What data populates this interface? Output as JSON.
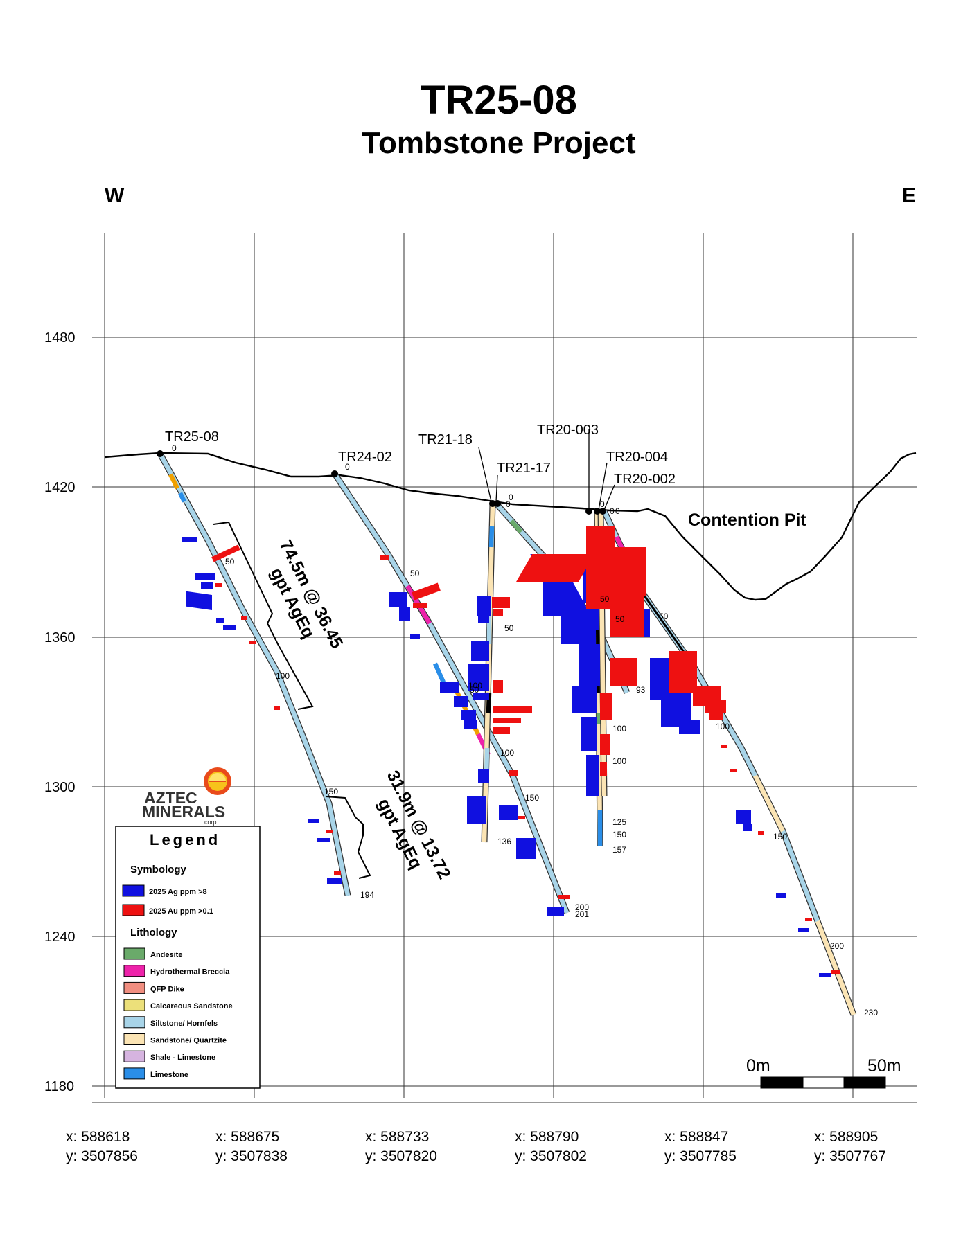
{
  "title": "TR25-08",
  "subtitle": "Tombstone Project",
  "directions": {
    "west": "W",
    "east": "E"
  },
  "elevation_ticks": [
    "1480",
    "1420",
    "1360",
    "1300",
    "1240",
    "1180"
  ],
  "coordinates": [
    {
      "x": "x: 588618",
      "y": "y: 3507856"
    },
    {
      "x": "x: 588675",
      "y": "y: 3507838"
    },
    {
      "x": "x: 588733",
      "y": "y: 3507820"
    },
    {
      "x": "x: 588790",
      "y": "y: 3507802"
    },
    {
      "x": "x: 588847",
      "y": "y: 3507785"
    },
    {
      "x": "x: 588905",
      "y": "y: 3507767"
    }
  ],
  "pit_label": "Contention Pit",
  "holes": [
    {
      "name": "TR25-08",
      "collar": "0",
      "marks": [
        "50",
        "100",
        "150"
      ],
      "end": "194"
    },
    {
      "name": "TR24-02",
      "collar": "0",
      "marks": [
        "50",
        "100",
        "150"
      ],
      "end": "200",
      "end2": "201"
    },
    {
      "name": "TR21-18",
      "collar": "0",
      "marks": [
        "50",
        "100"
      ],
      "end": "136"
    },
    {
      "name": "TR21-17",
      "collar": "0",
      "marks": [
        "50"
      ],
      "end": "93"
    },
    {
      "name": "TR20-003",
      "collar": "0",
      "marks": [
        "50",
        "100"
      ],
      "end": "157",
      "extra": [
        "125",
        "150"
      ]
    },
    {
      "name": "TR20-004",
      "collar": "0",
      "marks": [
        "50",
        "100"
      ]
    },
    {
      "name": "TR20-002",
      "collar": "0",
      "marks": [
        "50",
        "100",
        "150",
        "200"
      ],
      "end": "230"
    }
  ],
  "intercepts": [
    {
      "line1": "74.5m @ 36.45",
      "line2": "gpt AgEq"
    },
    {
      "line1": "31.9m @ 13.72",
      "line2": "gpt AgEq"
    }
  ],
  "logo": {
    "line1": "AZTEC",
    "line2": "MINERALS",
    "line3": "corp."
  },
  "legend": {
    "title": "Legend",
    "symbology_heading": "Symbology",
    "symbology": [
      {
        "label": "2025 Ag ppm >8",
        "color": "#1010e0"
      },
      {
        "label": "2025 Au ppm >0.1",
        "color": "#ee1111"
      }
    ],
    "lithology_heading": "Lithology",
    "lithology": [
      {
        "label": "Andesite",
        "color": "#6aaa6a"
      },
      {
        "label": "Hydrothermal Breccia",
        "color": "#ee22aa"
      },
      {
        "label": "QFP Dike",
        "color": "#f08e80"
      },
      {
        "label": "Calcareous Sandstone",
        "color": "#ece07a"
      },
      {
        "label": "Siltstone/ Hornfels",
        "color": "#a8d4e8"
      },
      {
        "label": "Sandstone/ Quartzite",
        "color": "#fbe4b4"
      },
      {
        "label": "Shale - Limestone",
        "color": "#d6b4e0"
      },
      {
        "label": "Limestone",
        "color": "#2a8ee8"
      }
    ]
  },
  "scale_bar": {
    "left": "0m",
    "right": "50m"
  }
}
